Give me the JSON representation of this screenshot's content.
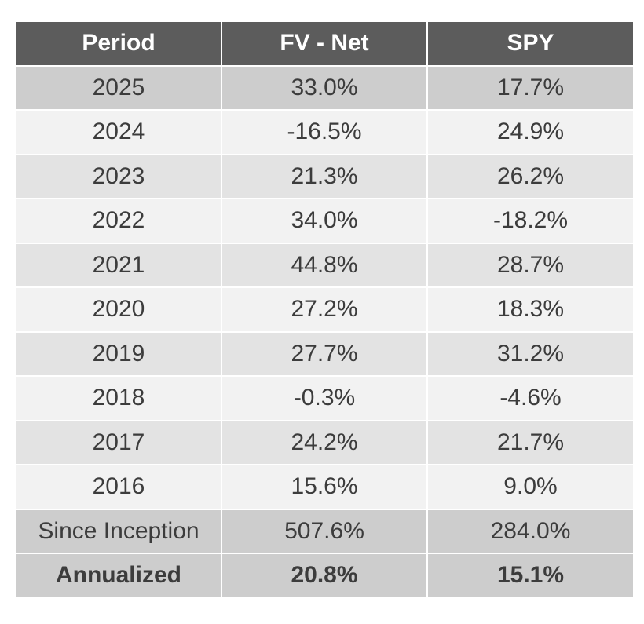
{
  "chart_data": {
    "type": "table",
    "columns": [
      "Period",
      "FV - Net",
      "SPY"
    ],
    "rows": [
      [
        "2025",
        "33.0%",
        "17.7%"
      ],
      [
        "2024",
        "-16.5%",
        "24.9%"
      ],
      [
        "2023",
        "21.3%",
        "26.2%"
      ],
      [
        "2022",
        "34.0%",
        "-18.2%"
      ],
      [
        "2021",
        "44.8%",
        "28.7%"
      ],
      [
        "2020",
        "27.2%",
        "18.3%"
      ],
      [
        "2019",
        "27.7%",
        "31.2%"
      ],
      [
        "2018",
        "-0.3%",
        "-4.6%"
      ],
      [
        "2017",
        "24.2%",
        "21.7%"
      ],
      [
        "2016",
        "15.6%",
        "9.0%"
      ],
      [
        "Since Inception",
        "507.6%",
        "284.0%"
      ],
      [
        "Annualized",
        "20.8%",
        "15.1%"
      ]
    ],
    "colors": {
      "header_bg": "#5c5c5c",
      "header_text": "#ffffff",
      "row_dark": "#cdcdcd",
      "row_mid": "#e3e3e3",
      "row_light": "#f2f2f2",
      "text": "#3c3c3c"
    }
  }
}
